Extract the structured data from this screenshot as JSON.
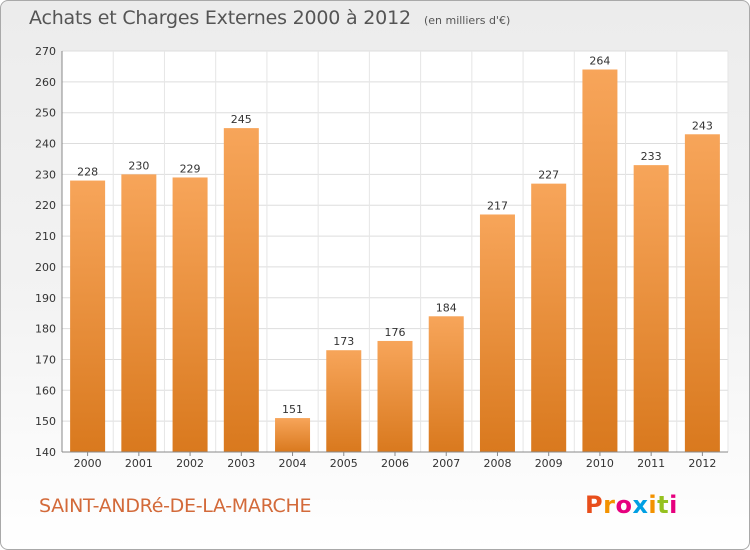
{
  "chart_data": {
    "type": "bar",
    "title": "Achats et Charges Externes 2000 à 2012",
    "subtitle": "(en milliers d'€)",
    "categories": [
      "2000",
      "2001",
      "2002",
      "2003",
      "2004",
      "2005",
      "2006",
      "2007",
      "2008",
      "2009",
      "2010",
      "2011",
      "2012"
    ],
    "values": [
      228,
      230,
      229,
      245,
      151,
      173,
      176,
      184,
      217,
      227,
      264,
      233,
      243
    ],
    "ylim": [
      140,
      270
    ],
    "yticks": [
      140,
      150,
      160,
      170,
      180,
      190,
      200,
      210,
      220,
      230,
      240,
      250,
      260,
      270
    ],
    "xlabel": "",
    "ylabel": "",
    "grid": true,
    "bar_color_top": "#f7a55a",
    "bar_color_bottom": "#d9791e"
  },
  "footer": {
    "commune": "SAINT-ANDRé-DE-LA-MARCHE",
    "logo_text": "Proxiti"
  },
  "colors": {
    "commune_text": "#d36a3a",
    "logo_letters": [
      "#e84e1b",
      "#f39200",
      "#e6007e",
      "#009fe3",
      "#f39200",
      "#95c11f",
      "#e6007e"
    ]
  }
}
